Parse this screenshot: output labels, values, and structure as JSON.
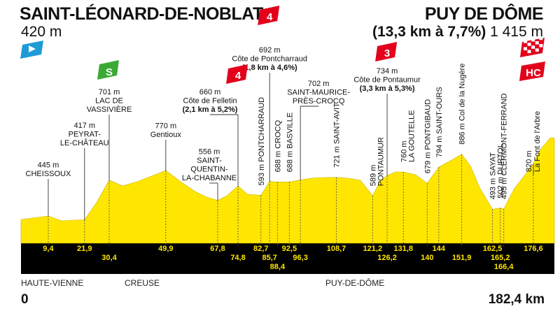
{
  "start": {
    "name": "SAINT-LÉONARD-DE-NOBLAT",
    "altitude": "420 m"
  },
  "finish": {
    "name": "PUY DE DÔME",
    "climb": "(13,3 km à 7,7%)",
    "altitude": "1 415 m"
  },
  "total": {
    "start_km": "0",
    "end_km": "182,4 km"
  },
  "regions": [
    {
      "name": "HAUTE-VIENNE",
      "km": 0
    },
    {
      "name": "CREUSE",
      "km": 35
    },
    {
      "name": "PUY-DE-DÔME",
      "km": 103
    }
  ],
  "colors": {
    "profile": "#FFE600",
    "axis_band": "#000000",
    "km_text": "#FFE600",
    "cat_badge": "#E3001B",
    "sprint": "#3BAA35",
    "start_flag": "#1E9BD7"
  },
  "chart_data": {
    "type": "area",
    "x_unit": "km",
    "y_unit": "m",
    "xlim": [
      0,
      182.4
    ],
    "profile": [
      [
        0,
        420
      ],
      [
        4,
        430
      ],
      [
        9.4,
        445
      ],
      [
        14,
        410
      ],
      [
        18,
        415
      ],
      [
        21.9,
        417
      ],
      [
        26,
        540
      ],
      [
        30.4,
        701
      ],
      [
        35,
        660
      ],
      [
        40,
        690
      ],
      [
        45,
        730
      ],
      [
        49.9,
        770
      ],
      [
        55,
        690
      ],
      [
        60,
        620
      ],
      [
        64,
        580
      ],
      [
        67.8,
        556
      ],
      [
        71,
        590
      ],
      [
        74.8,
        660
      ],
      [
        78,
        600
      ],
      [
        82.7,
        593
      ],
      [
        85.7,
        692
      ],
      [
        88.4,
        688
      ],
      [
        92.5,
        688
      ],
      [
        96.3,
        702
      ],
      [
        100,
        715
      ],
      [
        104,
        720
      ],
      [
        108.7,
        721
      ],
      [
        113,
        715
      ],
      [
        117,
        700
      ],
      [
        121.2,
        589
      ],
      [
        124,
        700
      ],
      [
        126.2,
        734
      ],
      [
        129,
        760
      ],
      [
        131.8,
        760
      ],
      [
        136,
        740
      ],
      [
        140,
        679
      ],
      [
        144,
        794
      ],
      [
        148,
        840
      ],
      [
        151.9,
        886
      ],
      [
        155,
        800
      ],
      [
        158,
        650
      ],
      [
        162.5,
        493
      ],
      [
        165.2,
        502
      ],
      [
        166.4,
        495
      ],
      [
        170,
        640
      ],
      [
        173,
        720
      ],
      [
        176.6,
        820
      ],
      [
        179,
        1000
      ],
      [
        182.4,
        1415
      ]
    ],
    "km_marks": [
      {
        "km": 9.4,
        "label": "9,4",
        "row": 0
      },
      {
        "km": 21.9,
        "label": "21,9",
        "row": 0
      },
      {
        "km": 30.4,
        "label": "30,4",
        "row": 1
      },
      {
        "km": 49.9,
        "label": "49,9",
        "row": 0
      },
      {
        "km": 67.8,
        "label": "67,8",
        "row": 0
      },
      {
        "km": 74.8,
        "label": "74,8",
        "row": 1
      },
      {
        "km": 82.7,
        "label": "82,7",
        "row": 0
      },
      {
        "km": 85.7,
        "label": "85,7",
        "row": 1
      },
      {
        "km": 88.4,
        "label": "88,4",
        "row": 2
      },
      {
        "km": 92.5,
        "label": "92,5",
        "row": 0
      },
      {
        "km": 96.3,
        "label": "96,3",
        "row": 1
      },
      {
        "km": 108.7,
        "label": "108,7",
        "row": 0
      },
      {
        "km": 121.2,
        "label": "121,2",
        "row": 0
      },
      {
        "km": 126.2,
        "label": "126,2",
        "row": 1
      },
      {
        "km": 131.8,
        "label": "131,8",
        "row": 0
      },
      {
        "km": 140,
        "label": "140",
        "row": 1
      },
      {
        "km": 144,
        "label": "144",
        "row": 0
      },
      {
        "km": 151.9,
        "label": "151,9",
        "row": 1
      },
      {
        "km": 162.5,
        "label": "162,5",
        "row": 0
      },
      {
        "km": 165.2,
        "label": "165,2",
        "row": 1
      },
      {
        "km": 166.4,
        "label": "166,4",
        "row": 2
      },
      {
        "km": 176.6,
        "label": "176,6",
        "row": 0
      }
    ],
    "horizontal_labels": [
      {
        "km": 9.4,
        "lines": [
          "445 m",
          "CHEISSOUX"
        ],
        "lineY": 256
      },
      {
        "km": 21.9,
        "lines": [
          "417 m",
          "PEYRAT-",
          "LE-CHÂTEAU"
        ],
        "lineY": 212
      },
      {
        "km": 30.4,
        "lines": [
          "701 m",
          "LAC DE",
          "VASSIVIÈRE"
        ],
        "lineY": 164
      },
      {
        "km": 49.9,
        "lines": [
          "770 m",
          "Gentioux"
        ],
        "lineY": 200
      },
      {
        "km": 67.8,
        "lines": [
          "556 m",
          "SAINT-",
          "QUENTIN-",
          "LA-CHABANNE"
        ],
        "lineY": 262,
        "shift": -12
      },
      {
        "km": 74.8,
        "lines": [
          "660 m",
          "Côte de Felletin",
          "(2,1 km à 5,2%)"
        ],
        "lineY": 164,
        "shift": -40,
        "bold": [
          2
        ]
      },
      {
        "km": 85.7,
        "lines": [
          "692 m",
          "Côte de Pontcharraud",
          "(1,8 km à 4,6%)"
        ],
        "lineY": 104,
        "bold": [
          2
        ]
      },
      {
        "km": 96.3,
        "lines": [
          "702 m",
          "SAINT-MAURICE-",
          "PRÈS-CROCQ"
        ],
        "lineY": 152,
        "shift": 26
      },
      {
        "km": 126.2,
        "lines": [
          "734 m",
          "Côte de Pontaumur",
          "(3,3 km à 5,3%)"
        ],
        "lineY": 134,
        "bold": [
          2
        ]
      },
      {
        "km": 176.6,
        "lines": [
          "820 m",
          "La Font de l'Arbre"
        ],
        "lineY": 250,
        "vertical": true
      }
    ],
    "vertical_labels": [
      {
        "km": 82.7,
        "text": "593 m PONTCHARRAUD"
      },
      {
        "km": 88.4,
        "text": "688 m CROCQ"
      },
      {
        "km": 92.5,
        "text": "688 m BASVILLE"
      },
      {
        "km": 108.7,
        "text": "721 m SAINT-AVIT"
      },
      {
        "km": 121.2,
        "text": "589 m",
        "text2": "PONTAUMUR"
      },
      {
        "km": 131.8,
        "text": "760 m",
        "text2": "LA GOUTELLE"
      },
      {
        "km": 140,
        "text": "679 m PONTGIBAUD"
      },
      {
        "km": 144,
        "text": "794 m SAINT-OURS"
      },
      {
        "km": 151.9,
        "text": "886 m Col de la Nugère"
      },
      {
        "km": 162.5,
        "text": "493 m SAYAT"
      },
      {
        "km": 165.2,
        "text": "502 m DURTOL"
      },
      {
        "km": 166.4,
        "text": "495 m CLERMONT-FERRAND"
      }
    ],
    "badges": [
      {
        "type": "flag-start",
        "km": 0
      },
      {
        "type": "sprint",
        "km": 30.4,
        "text": "S"
      },
      {
        "type": "cat",
        "km": 74.8,
        "text": "4",
        "y": 94
      },
      {
        "type": "cat",
        "km": 85.7,
        "text": "4",
        "y": 10
      },
      {
        "type": "cat",
        "km": 126.2,
        "text": "3",
        "y": 62
      },
      {
        "type": "finish-flag",
        "km": 176.6,
        "y": 56
      },
      {
        "type": "cat",
        "km": 176.6,
        "text": "HC",
        "y": 90
      }
    ]
  }
}
